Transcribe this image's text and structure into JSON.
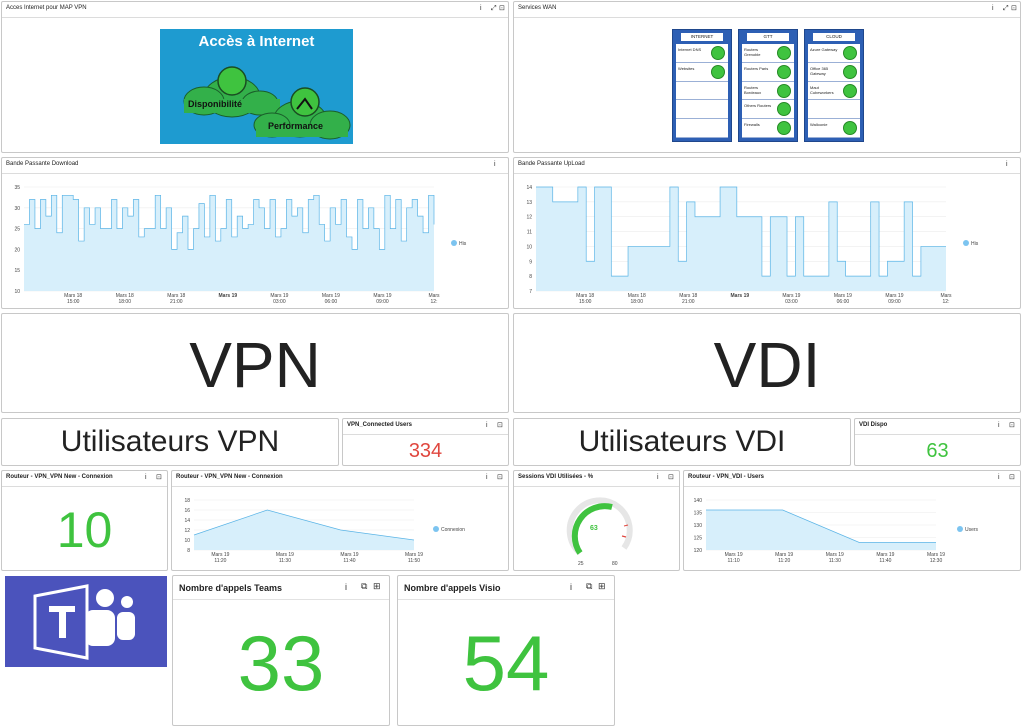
{
  "colors": {
    "green": "#3fc33f",
    "red": "#e0473f",
    "chart_fill": "#d7effb",
    "chart_line": "#5ab4e6",
    "teams": "#4b53bc"
  },
  "p1": {
    "title": "Acces Internet pour MAP VPN",
    "banner_title": "Accès à Internet",
    "label1": "Disponibilité",
    "label2": "Performance"
  },
  "p2": {
    "title": "Services WAN",
    "columns": [
      {
        "header": "INTERNET",
        "items": [
          "Internet DNS",
          "Websites",
          "",
          "",
          ""
        ],
        "status": [
          true,
          true,
          false,
          false,
          false
        ]
      },
      {
        "header": "GTT",
        "items": [
          "Routers Grenoble",
          "Routers Paris",
          "Routers Bordeaux",
          "Others Routers",
          "Firewalls"
        ],
        "status": [
          true,
          true,
          true,
          true,
          true
        ]
      },
      {
        "header": "CLOUD",
        "items": [
          "Azure Gateway",
          "Office 365 Gateway",
          "Maut Cubeworkers",
          "",
          "Walloonie"
        ],
        "status": [
          true,
          true,
          true,
          false,
          true
        ]
      }
    ]
  },
  "p3": {
    "title": "Bande Passante Download",
    "legend": "His"
  },
  "p4": {
    "title": "Bande Passante UpLoad",
    "legend": "His"
  },
  "vpn": {
    "text": "VPN"
  },
  "vdi": {
    "text": "VDI"
  },
  "uvpn": {
    "text": "Utilisateurs VPN"
  },
  "uvdi": {
    "text": "Utilisateurs VDI"
  },
  "vpn_users": {
    "title": "VPN_Connected Users",
    "value": "334"
  },
  "vdi_dispo": {
    "title": "VDI Dispo",
    "value": "63"
  },
  "rt1": {
    "title": "Routeur - VPN_VPN New - Connexion",
    "value": "10"
  },
  "rt2": {
    "title": "Routeur - VPN_VPN New - Connexion",
    "legend": "Connexion"
  },
  "sessions": {
    "title": "Sessions VDI Utilisées - %",
    "value": "63",
    "min": "25",
    "max": "80"
  },
  "rt3": {
    "title": "Routeur - VPN_VDI - Users",
    "legend": "Users"
  },
  "teams_calls": {
    "title": "Nombre d'appels Teams",
    "value": "33"
  },
  "visio_calls": {
    "title": "Nombre d'appels Visio",
    "value": "54"
  },
  "icons": {
    "info": "i",
    "expand": "⤢",
    "menu": "⊡"
  },
  "chart_data": [
    {
      "type": "area",
      "title": "Bande Passante Download",
      "ylim": [
        10,
        35
      ],
      "yticks": [
        "35",
        "30",
        "25",
        "20",
        "15",
        "10"
      ],
      "xticks": [
        "Mars 18\n15:00",
        "Mars 18\n18:00",
        "Mars 18\n21:00",
        "Mars 19",
        "Mars 19\n03:00",
        "Mars 19\n06:00",
        "Mars 19\n09:00",
        "Mars\n12:"
      ],
      "series": [
        {
          "name": "His",
          "values": [
            26,
            32,
            25,
            32,
            28,
            33,
            24,
            33,
            33,
            32,
            22,
            30,
            26,
            30,
            25,
            25,
            32,
            25,
            30,
            28,
            32,
            23,
            25,
            25,
            33,
            25,
            30,
            20,
            24,
            28,
            20,
            25,
            31,
            23,
            33,
            22,
            25,
            32,
            23,
            28,
            25,
            26,
            32,
            30,
            25,
            32,
            23,
            25,
            32,
            28,
            30,
            24,
            32,
            33,
            26,
            22,
            30,
            26,
            32,
            23,
            20,
            32,
            25,
            30,
            25,
            20,
            33,
            25,
            32,
            22,
            30,
            32,
            28,
            24,
            33,
            26
          ]
        }
      ]
    },
    {
      "type": "area",
      "title": "Bande Passante UpLoad",
      "ylim": [
        7,
        14
      ],
      "yticks": [
        "14",
        "13",
        "12",
        "11",
        "10",
        "9",
        "8",
        "7"
      ],
      "xticks": [
        "Mars 18\n15:00",
        "Mars 18\n18:00",
        "Mars 18\n21:00",
        "Mars 19",
        "Mars 19\n03:00",
        "Mars 19\n06:00",
        "Mars 19\n09:00",
        "Mars\n12:"
      ],
      "series": [
        {
          "name": "His",
          "values": [
            14,
            14,
            13,
            13,
            13,
            14,
            9,
            14,
            14,
            8,
            8,
            10,
            10,
            10,
            10,
            10,
            14,
            9,
            13,
            12,
            12,
            12,
            14,
            14,
            12,
            12,
            12,
            8,
            12,
            12,
            8,
            12,
            8,
            8,
            8,
            13,
            9,
            8,
            8,
            8,
            13,
            8,
            9,
            9,
            13,
            8,
            10,
            10,
            10,
            10
          ]
        }
      ]
    },
    {
      "type": "area",
      "title": "Routeur - VPN_VPN New - Connexion",
      "ylim": [
        8,
        18
      ],
      "yticks": [
        "18",
        "16",
        "14",
        "12",
        "10",
        "8"
      ],
      "xticks": [
        "Mars 19\n11:20",
        "Mars 19\n11:30",
        "Mars 19\n11:40",
        "Mars 19\n11:50"
      ],
      "series": [
        {
          "name": "Connexion",
          "values": [
            11,
            16,
            12,
            10
          ]
        }
      ]
    },
    {
      "type": "area",
      "title": "Routeur - VPN_VDI - Users",
      "ylim": [
        120,
        140
      ],
      "yticks": [
        "140",
        "135",
        "130",
        "125",
        "120"
      ],
      "xticks": [
        "Mars 19\n11:10",
        "Mars 19\n11:20",
        "Mars 19\n11:30",
        "Mars 19\n11:40",
        "Mars 19\n12:30"
      ],
      "series": [
        {
          "name": "Users",
          "values": [
            136,
            136,
            123,
            123
          ]
        }
      ]
    }
  ]
}
